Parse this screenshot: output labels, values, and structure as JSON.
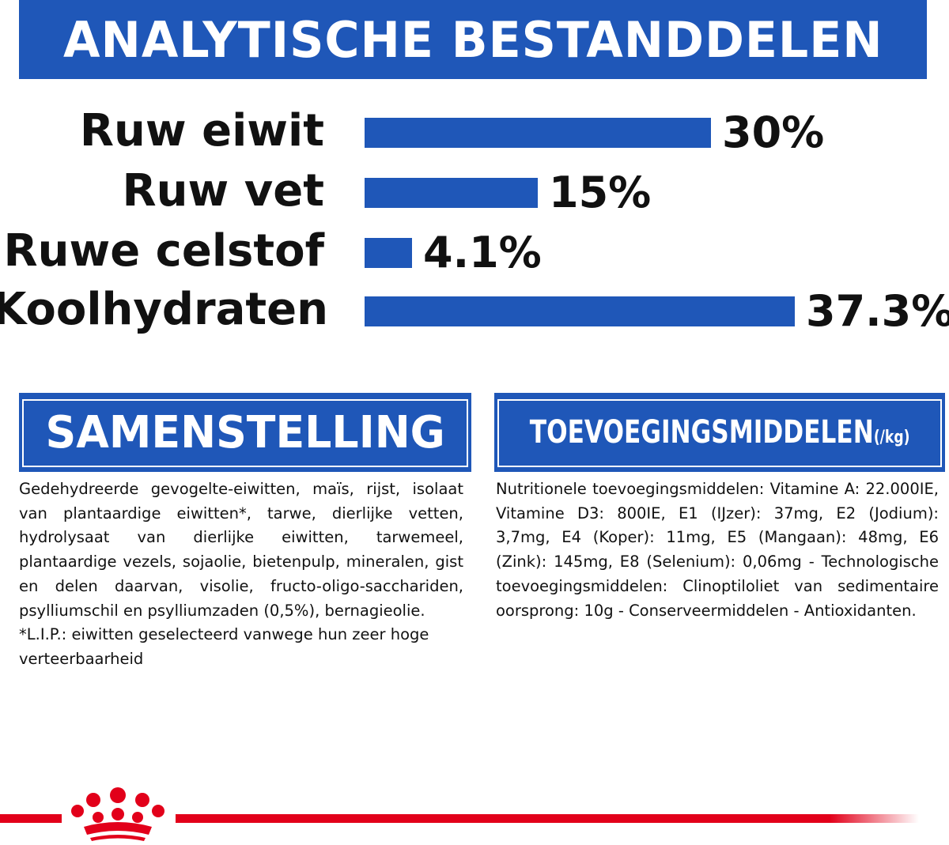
{
  "colors": {
    "brand_blue": "#1f57b8",
    "brand_red": "#e2001a",
    "text": "#111111"
  },
  "title": "ANALYTISCHE BESTANDDELEN",
  "chart_data": {
    "type": "bar",
    "categories": [
      "Ruw eiwit",
      "Ruw vet",
      "Ruwe celstof",
      "Koolhydraten"
    ],
    "values": [
      30,
      15,
      4.1,
      37.3
    ],
    "value_labels": [
      "30%",
      "15%",
      "4.1%",
      "37.3%"
    ],
    "unit": "%",
    "orientation": "horizontal",
    "title": "",
    "xlabel": "",
    "ylabel": "",
    "xlim": [
      0,
      37.3
    ],
    "grid": false
  },
  "composition": {
    "header": "SAMENSTELLING",
    "paragraphs": [
      "Gedehydreerde gevogelte-eiwitten, maïs, rijst, isolaat van plantaardige eiwitten*, tarwe, dierlijke vetten, hydrolysaat van dierlijke eiwitten, tarwemeel, plantaardige vezels, sojaolie, bietenpulp, mineralen, gist en delen daarvan, visolie, fructo-oligo-sacchariden, psylliumschil en psylliumzaden (0,5%), bernagieolie.",
      "*L.I.P.: eiwitten geselecteerd vanwege hun zeer hoge verteerbaarheid"
    ]
  },
  "additives": {
    "header": "TOEVOEGINGSMIDDELEN",
    "header_unit": "(/kg)",
    "text": "Nutritionele toevoegingsmiddelen: Vitamine A: 22.000IE, Vitamine D3: 800IE, E1 (IJzer): 37mg, E2 (Jodium): 3,7mg, E4 (Koper): 11mg, E5 (Mangaan): 48mg, E6 (Zink): 145mg, E8 (Selenium): 0,06mg - Technologische toevoegingsmiddelen: Clinoptiloliet van sedimentaire oorsprong: 10g - Conserveermiddelen - Antioxidanten."
  },
  "footer": {
    "logo_icon": "royal-canin-crown-icon"
  }
}
